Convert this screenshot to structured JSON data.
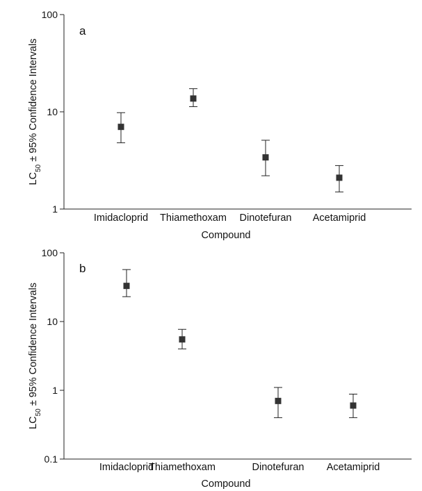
{
  "chart_data": [
    {
      "type": "scatter",
      "panel_label": "a",
      "yscale": "log",
      "ylim": [
        1,
        100
      ],
      "yticks": [
        "1",
        "10",
        "100"
      ],
      "xlabel": "Compound",
      "ylabel_main": "LC",
      "ylabel_sub": "50",
      "ylabel_rest": " ± 95% Confidence Intervals",
      "categories": [
        "Imidacloprid",
        "Thiamethoxam",
        "Dinotefuran",
        "Acetamiprid"
      ],
      "values": [
        7.0,
        13.7,
        3.4,
        2.1
      ],
      "ci_low": [
        4.8,
        11.3,
        2.2,
        1.5
      ],
      "ci_high": [
        9.8,
        17.3,
        5.1,
        2.8
      ]
    },
    {
      "type": "scatter",
      "panel_label": "b",
      "yscale": "log",
      "ylim": [
        0.1,
        100
      ],
      "yticks": [
        "0.1",
        "1",
        "10",
        "100"
      ],
      "xlabel": "Compound",
      "ylabel_main": "LC",
      "ylabel_sub": "50",
      "ylabel_rest": " ± 95% Confidence Intervals",
      "categories": [
        "Imidacloprid",
        "Thiamethoxam",
        "Dinotefuran",
        "Acetamiprid"
      ],
      "values": [
        33,
        5.5,
        0.7,
        0.6
      ],
      "ci_low": [
        23,
        4.0,
        0.4,
        0.4
      ],
      "ci_high": [
        57,
        7.7,
        1.1,
        0.88
      ]
    }
  ]
}
